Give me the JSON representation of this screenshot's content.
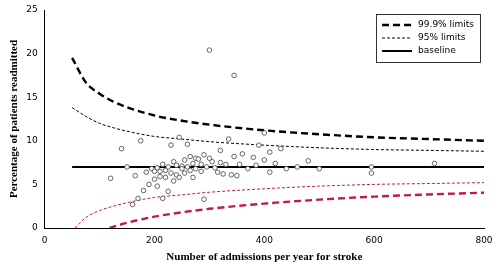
{
  "chart_data": {
    "type": "scatter",
    "x_label": "Number of admissions per year for stroke",
    "y_label": "Percentage of patients readmitted",
    "xlim": [
      0,
      800
    ],
    "xticks": [
      0,
      200,
      400,
      600,
      800
    ],
    "ylim": [
      0,
      25
    ],
    "yticks": [
      0,
      5,
      10,
      15,
      20,
      25
    ],
    "grid": false,
    "legend": "upper right",
    "series": [
      {
        "name": "99.9% limits",
        "type": "line",
        "color": "#000000",
        "line_style": "long_dash",
        "x": [
          50,
          75,
          100,
          125,
          150,
          200,
          250,
          300,
          400,
          500,
          600,
          700,
          800
        ],
        "values": [
          19.5,
          16.7,
          15.4,
          14.5,
          13.85,
          12.9,
          12.3,
          11.85,
          11.2,
          10.75,
          10.4,
          10.2,
          10.0
        ]
      },
      {
        "name": "95% limits",
        "type": "line",
        "color": "#000000",
        "line_style": "short_dash",
        "x": [
          50,
          75,
          100,
          125,
          150,
          200,
          250,
          300,
          400,
          500,
          600,
          700,
          800
        ],
        "values": [
          13.8,
          12.8,
          12.0,
          11.5,
          11.1,
          10.5,
          10.2,
          9.9,
          9.5,
          9.2,
          9.0,
          8.9,
          8.8
        ]
      },
      {
        "name": "baseline",
        "type": "line",
        "color": "#000000",
        "line_style": "solid",
        "x": [
          50,
          800
        ],
        "values": [
          7,
          7
        ]
      },
      {
        "type": "line",
        "color": "#c2185b",
        "line_style": "short_dash",
        "x": [
          55,
          75,
          100,
          125,
          150,
          200,
          250,
          300,
          400,
          500,
          600,
          700,
          800
        ],
        "values": [
          0,
          1.2,
          2.0,
          2.5,
          2.9,
          3.5,
          3.8,
          4.1,
          4.5,
          4.8,
          5.0,
          5.1,
          5.2
        ]
      },
      {
        "type": "line",
        "color": "#c2185b",
        "line_style": "long_dash",
        "x": [
          118,
          150,
          200,
          250,
          300,
          400,
          500,
          600,
          700,
          800
        ],
        "values": [
          0,
          0.6,
          1.3,
          1.8,
          2.2,
          2.8,
          3.25,
          3.6,
          3.85,
          4.05
        ]
      },
      {
        "type": "scatter",
        "color": "#555555",
        "marker": "circle",
        "x": [
          120,
          140,
          150,
          160,
          165,
          170,
          175,
          180,
          185,
          190,
          195,
          200,
          200,
          205,
          205,
          210,
          210,
          215,
          215,
          220,
          220,
          225,
          225,
          230,
          230,
          235,
          235,
          240,
          240,
          245,
          245,
          250,
          250,
          255,
          255,
          260,
          260,
          265,
          265,
          270,
          270,
          275,
          275,
          280,
          285,
          285,
          290,
          290,
          295,
          300,
          300,
          305,
          310,
          315,
          320,
          320,
          325,
          330,
          335,
          340,
          345,
          345,
          350,
          355,
          360,
          370,
          380,
          385,
          390,
          400,
          400,
          410,
          410,
          420,
          430,
          440,
          460,
          480,
          500,
          595,
          595,
          710
        ],
        "values": [
          5.7,
          9.1,
          7.0,
          2.7,
          6.0,
          3.4,
          10.0,
          4.3,
          6.4,
          5.0,
          6.8,
          6.5,
          5.6,
          4.8,
          6.9,
          6.5,
          5.9,
          7.3,
          3.4,
          5.8,
          6.6,
          4.2,
          7.0,
          6.3,
          9.5,
          7.6,
          5.4,
          6.1,
          7.2,
          5.8,
          10.4,
          7.1,
          6.8,
          7.8,
          6.3,
          7.0,
          9.6,
          6.6,
          8.2,
          7.4,
          5.8,
          6.8,
          8.0,
          7.9,
          7.3,
          6.5,
          8.4,
          3.3,
          7.0,
          20.4,
          8.0,
          7.6,
          6.9,
          6.4,
          8.9,
          7.5,
          6.2,
          7.3,
          10.2,
          6.1,
          17.5,
          8.2,
          6.0,
          7.3,
          8.5,
          6.8,
          8.1,
          7.2,
          9.5,
          10.9,
          7.8,
          8.7,
          6.4,
          7.4,
          9.1,
          6.8,
          7.0,
          7.7,
          6.8,
          6.3,
          7.0,
          7.4
        ]
      }
    ]
  }
}
